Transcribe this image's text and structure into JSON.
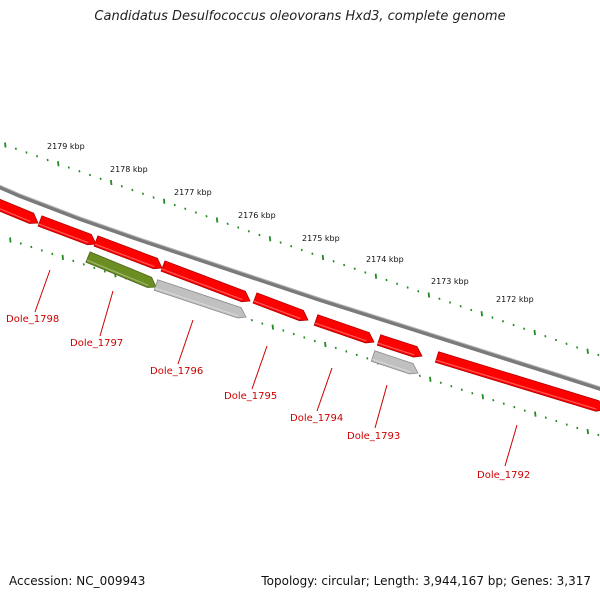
{
  "title": "Candidatus Desulfococcus oleovorans Hxd3, complete genome",
  "footer": {
    "accession": "Accession: NC_009943",
    "topology": "Topology: circular; Length: 3,944,167 bp; Genes: 3,317"
  },
  "colors": {
    "gene_forward": "#ff0000",
    "gene_grey": "#c0c0c0",
    "gene_green": "#6b8e23",
    "tick": "#228b22",
    "backbone": "#808080",
    "label": "#cc0000"
  },
  "scale_labels": [
    "2179 kbp",
    "2178 kbp",
    "2177 kbp",
    "2176 kbp",
    "2175 kbp",
    "2174 kbp",
    "2173 kbp",
    "2172 kbp"
  ],
  "genes": [
    {
      "id": "Dole_1798",
      "color": "red"
    },
    {
      "id": "Dole_1797",
      "color": "green"
    },
    {
      "id": "Dole_1796",
      "color": "grey"
    },
    {
      "id": "Dole_1795",
      "color": "red"
    },
    {
      "id": "Dole_1794",
      "color": "red"
    },
    {
      "id": "Dole_1793",
      "color": "grey"
    },
    {
      "id": "Dole_1792",
      "color": "red"
    }
  ]
}
